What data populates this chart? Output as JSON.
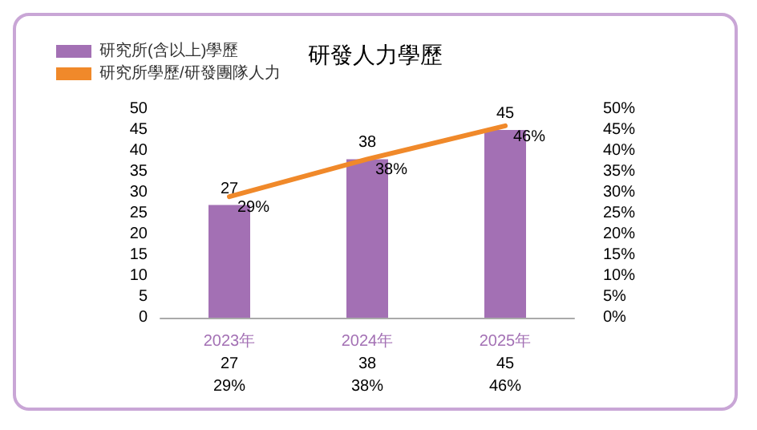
{
  "chart_data": {
    "type": "bar",
    "title": "研發人力學歷",
    "categories": [
      "2023年",
      "2024年",
      "2025年"
    ],
    "series": [
      {
        "name": "研究所(含以上)學歷",
        "color": "#a370b4",
        "values": [
          27,
          38,
          45
        ]
      },
      {
        "name": "研究所學歷/研發團隊人力",
        "type": "line",
        "axis": "y2",
        "color": "#f0892a",
        "values": [
          29,
          38,
          46
        ]
      }
    ],
    "ylim": [
      0,
      50
    ],
    "yticks": [
      0,
      5,
      10,
      15,
      20,
      25,
      30,
      35,
      40,
      45,
      50
    ],
    "y2lim": [
      0,
      50
    ],
    "y2ticks": [
      {
        "value": 0,
        "label": "0%"
      },
      {
        "value": 5,
        "label": "5%"
      },
      {
        "value": 10,
        "label": "10%"
      },
      {
        "value": 15,
        "label": "15%"
      },
      {
        "value": 20,
        "label": "20%"
      },
      {
        "value": 25,
        "label": "25%"
      },
      {
        "value": 30,
        "label": "30%"
      },
      {
        "value": 35,
        "label": "35%"
      },
      {
        "value": 40,
        "label": "40%"
      },
      {
        "value": 45,
        "label": "45%"
      },
      {
        "value": 50,
        "label": "50%"
      }
    ],
    "value_labels": [
      [
        "27",
        "38",
        "45"
      ],
      [
        "29%",
        "38%",
        "46%"
      ]
    ],
    "legend": "top left",
    "grid": false,
    "marker": "none",
    "line_style": "solid"
  }
}
